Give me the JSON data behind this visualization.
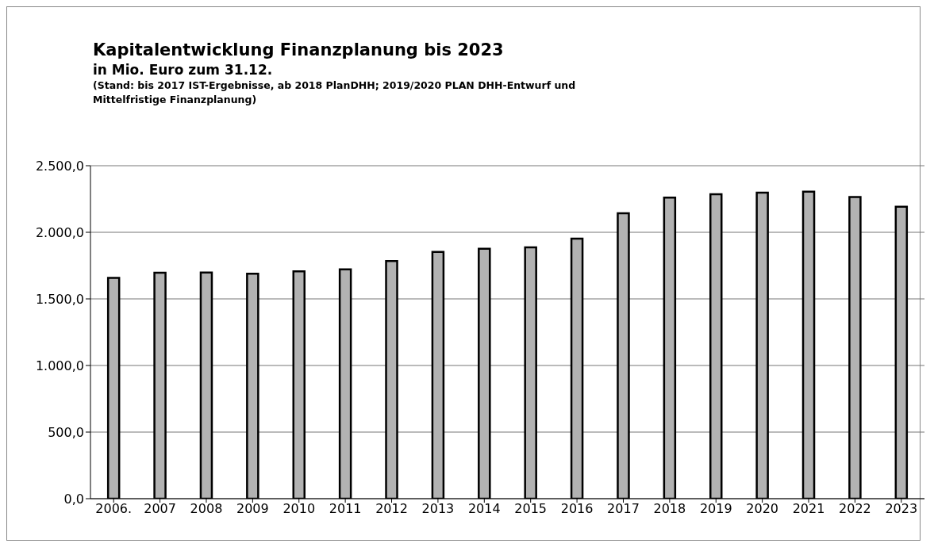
{
  "chart_data": {
    "type": "bar",
    "title": "Kapitalentwicklung Finanzplanung bis 2023",
    "subtitle": "in Mio. Euro zum 31.12.",
    "annotations": [
      "(Stand: bis 2017  IST-Ergebnisse, ab 2018 PlanDHH; 2019/2020 PLAN DHH-Entwurf und Mittelfristige Finanzplanung)"
    ],
    "categories": [
      "2006.",
      "2007",
      "2008",
      "2009",
      "2010",
      "2011",
      "2012",
      "2013",
      "2014",
      "2015",
      "2016",
      "2017",
      "2018",
      "2019",
      "2020",
      "2021",
      "2022",
      "2023"
    ],
    "values": [
      1657,
      1697,
      1698,
      1689,
      1707,
      1722,
      1784,
      1852,
      1877,
      1887,
      1953,
      2143,
      2261,
      2285,
      2297,
      2305,
      2265,
      2192
    ],
    "color": "#b2b2b2",
    "ylim": [
      0,
      2500
    ],
    "yticks": [
      {
        "value": 0,
        "label": "0,0"
      },
      {
        "value": 500,
        "label": "500,0"
      },
      {
        "value": 1000,
        "label": "1.000,0"
      },
      {
        "value": 1500,
        "label": "1.500,0"
      },
      {
        "value": 2000,
        "label": "2.000,0"
      },
      {
        "value": 2500,
        "label": "2.500,0"
      }
    ],
    "grid": "y",
    "legend": false
  }
}
